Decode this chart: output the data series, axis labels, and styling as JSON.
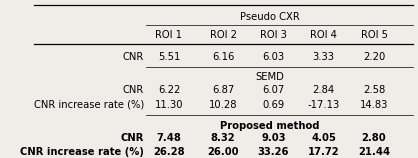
{
  "title_pseudo": "Pseudo CXR",
  "title_semd": "SEMD",
  "title_proposed": "Proposed method",
  "col_headers": [
    "ROI 1",
    "ROI 2",
    "ROI 3",
    "ROI 4",
    "ROI 5"
  ],
  "pseudo_cnr": [
    "5.51",
    "6.16",
    "6.03",
    "3.33",
    "2.20"
  ],
  "semd_cnr": [
    "6.22",
    "6.87",
    "6.07",
    "2.84",
    "2.58"
  ],
  "semd_rate": [
    "11.30",
    "10.28",
    "0.69",
    "-17.13",
    "14.83"
  ],
  "proposed_cnr": [
    "7.48",
    "8.32",
    "9.03",
    "4.05",
    "2.80"
  ],
  "proposed_rate": [
    "26.28",
    "26.00",
    "33.26",
    "17.72",
    "21.44"
  ],
  "bg_color": "#f0ede8",
  "text_color": "#000000",
  "fontsize": 7.2
}
